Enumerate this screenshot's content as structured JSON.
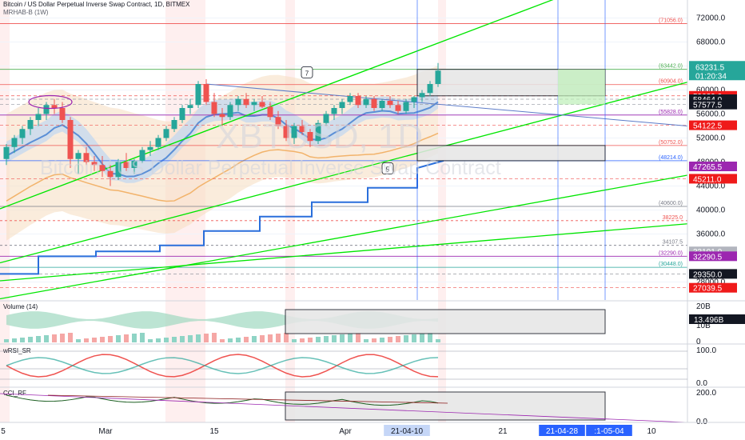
{
  "header": {
    "symbol_line": "Bitcoin / US Dollar Perpetual Inverse Swap Contract, 1D, BITMEX",
    "indicator_line": "MRHAB-B (1W)"
  },
  "watermark": {
    "ticker": "XBTUSD, 1D",
    "name": "Bitcoin / US Dollar Perpetual Inverse Swap Contract"
  },
  "chart_data": {
    "type": "candlestick",
    "price_axis": {
      "ylim": [
        25000,
        75000
      ],
      "ticks": [
        {
          "value": 72000,
          "label": "72000.0"
        },
        {
          "value": 68000,
          "label": "68000.0"
        },
        {
          "value": 64000,
          "label": "64000.0"
        },
        {
          "value": 60000,
          "label": "60000.0"
        },
        {
          "value": 56000,
          "label": "56000.0"
        },
        {
          "value": 52000,
          "label": "52000.0"
        },
        {
          "value": 48000,
          "label": "48000.0"
        },
        {
          "value": 44000,
          "label": "44000.0"
        },
        {
          "value": 40000,
          "label": "40000.0"
        },
        {
          "value": 36000,
          "label": "36000.0"
        },
        {
          "value": 32000,
          "label": "32000.0"
        },
        {
          "value": 28000,
          "label": "28000.0"
        }
      ]
    },
    "time_axis": {
      "labels": [
        "5",
        "Mar",
        "15",
        "Apr",
        "21-04-10",
        "21",
        "21-04-28",
        ":1-05-04",
        "10"
      ],
      "highlighted": [
        "21-04-10",
        "21-04-28",
        ":1-05-04"
      ]
    },
    "current_price": {
      "label": "63231.5",
      "countdown": "01:20:34",
      "color": "#26a69a"
    },
    "price_tags": [
      {
        "value": 59029,
        "label": "59029.0",
        "color": "#ef1a1a"
      },
      {
        "value": 58464,
        "label": "58464.0",
        "color": "#131722"
      },
      {
        "value": 57577.5,
        "label": "57577.5",
        "color": "#131722"
      },
      {
        "value": 54122.5,
        "label": "54122.5",
        "color": "#ef1a1a"
      },
      {
        "value": 47265.5,
        "label": "47265.5",
        "color": "#9c27b0"
      },
      {
        "value": 45211,
        "label": "45211.0",
        "color": "#ef1a1a"
      },
      {
        "value": 33101,
        "label": "33101.0",
        "color": "#b2b5be"
      },
      {
        "value": 32290.5,
        "label": "32290.5",
        "color": "#9c27b0"
      },
      {
        "value": 29350,
        "label": "29350.0",
        "color": "#131722"
      },
      {
        "value": 27039.5,
        "label": "27039.5",
        "color": "#ef1a1a"
      }
    ],
    "levels": [
      {
        "value": 71056,
        "label": "(71056.0)",
        "color": "#ef5350"
      },
      {
        "value": 63442,
        "label": "(63442.0)",
        "color": "#4caf50"
      },
      {
        "value": 60904,
        "label": "(60904.0)",
        "color": "#ef5350"
      },
      {
        "value": 55828,
        "label": "(55828.0)",
        "color": "#9c27b0"
      },
      {
        "value": 50752,
        "label": "(50752.0)",
        "color": "#ef5350"
      },
      {
        "value": 48214,
        "label": "(48214.0)",
        "color": "#2962ff"
      },
      {
        "value": 40600,
        "label": "(40600.0)",
        "color": "#787b86"
      },
      {
        "value": 38225,
        "label": "38225.0",
        "color": "#ef5350"
      },
      {
        "value": 34107.5,
        "label": "34107.5",
        "color": "#787b86"
      },
      {
        "value": 32290,
        "label": "(32290.0)",
        "color": "#9c27b0"
      },
      {
        "value": 30448,
        "label": "(30448.0)",
        "color": "#26a69a"
      }
    ],
    "wave_labels": [
      "7",
      "5"
    ],
    "candles": [
      [
        48500,
        51000,
        47500,
        50500
      ],
      [
        50500,
        52500,
        49500,
        52000
      ],
      [
        52000,
        54000,
        51000,
        53500
      ],
      [
        53500,
        55500,
        52500,
        55000
      ],
      [
        55000,
        57000,
        54000,
        56000
      ],
      [
        56000,
        58000,
        55000,
        57500
      ],
      [
        57500,
        58500,
        56000,
        57000
      ],
      [
        57000,
        58000,
        54500,
        55000
      ],
      [
        55000,
        55500,
        47000,
        48500
      ],
      [
        48500,
        50000,
        46000,
        49500
      ],
      [
        49500,
        50500,
        47500,
        48000
      ],
      [
        48000,
        49000,
        46500,
        47500
      ],
      [
        47500,
        49000,
        45500,
        46500
      ],
      [
        46500,
        47500,
        44000,
        45500
      ],
      [
        45500,
        48500,
        45000,
        48000
      ],
      [
        48000,
        49500,
        46500,
        47000
      ],
      [
        47000,
        48500,
        46000,
        48200
      ],
      [
        48200,
        50500,
        47800,
        50000
      ],
      [
        50000,
        51500,
        49000,
        50500
      ],
      [
        50500,
        52500,
        50000,
        52000
      ],
      [
        52000,
        54000,
        51500,
        53500
      ],
      [
        53500,
        55500,
        53000,
        55000
      ],
      [
        55000,
        57500,
        54500,
        57000
      ],
      [
        57000,
        58500,
        56000,
        57500
      ],
      [
        57500,
        61500,
        57000,
        61000
      ],
      [
        61000,
        61800,
        57500,
        58000
      ],
      [
        58000,
        59500,
        55500,
        56000
      ],
      [
        56000,
        57000,
        54000,
        55500
      ],
      [
        55500,
        58000,
        55000,
        57500
      ],
      [
        57500,
        59000,
        56500,
        58500
      ],
      [
        58500,
        59500,
        57000,
        57500
      ],
      [
        57500,
        58500,
        56500,
        58000
      ],
      [
        58000,
        59000,
        57000,
        57200
      ],
      [
        57200,
        58000,
        55000,
        55500
      ],
      [
        55500,
        56500,
        53500,
        54000
      ],
      [
        54000,
        55000,
        51500,
        52000
      ],
      [
        52000,
        54500,
        51000,
        54000
      ],
      [
        54000,
        55000,
        52500,
        53000
      ],
      [
        53000,
        53500,
        50500,
        51500
      ],
      [
        51500,
        55000,
        51000,
        54500
      ],
      [
        54500,
        56500,
        54000,
        56000
      ],
      [
        56000,
        57500,
        55000,
        57000
      ],
      [
        57000,
        58500,
        56000,
        58000
      ],
      [
        58000,
        59500,
        57500,
        59000
      ],
      [
        59000,
        59500,
        57000,
        57500
      ],
      [
        57500,
        59000,
        57000,
        58500
      ],
      [
        58500,
        59000,
        56500,
        57000
      ],
      [
        57000,
        58500,
        56500,
        58200
      ],
      [
        58200,
        59000,
        57000,
        57500
      ],
      [
        57500,
        58200,
        56000,
        56500
      ],
      [
        56500,
        58500,
        56000,
        58000
      ],
      [
        58000,
        59000,
        57000,
        58800
      ],
      [
        58800,
        60000,
        58000,
        59500
      ],
      [
        59500,
        61500,
        59000,
        61000
      ],
      [
        61000,
        64500,
        60500,
        63231.5
      ]
    ],
    "volume_axis": {
      "ticks": [
        "20B",
        "10B",
        "0"
      ],
      "tag": "13.496B"
    },
    "wrsi_sr": {
      "name": "wRSI_SR",
      "ticks": [
        "100.0",
        "0.0"
      ]
    },
    "cci_rf": {
      "name": "CCI_RF",
      "ticks": [
        "200.0",
        "0.0"
      ]
    },
    "volume_label": "Volume (14)",
    "colors": {
      "up": "#26a69a",
      "down": "#ef5350",
      "green_line": "#00e600",
      "blue_line": "#2962ff"
    }
  }
}
